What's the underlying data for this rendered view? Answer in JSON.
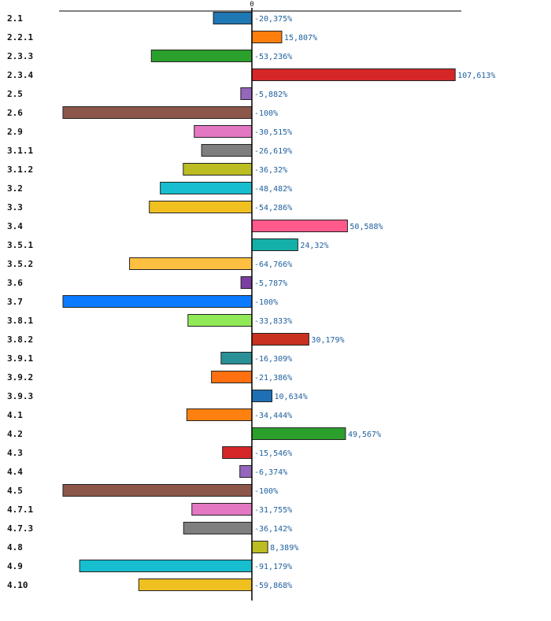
{
  "chart_data": {
    "type": "bar",
    "orientation": "horizontal",
    "title": "",
    "xlabel": "",
    "ylabel": "",
    "zero_tick_label": "0",
    "xlim": [
      -100,
      107.613
    ],
    "grid": false,
    "legend": "none",
    "categories": [
      "2.1",
      "2.2.1",
      "2.3.3",
      "2.3.4",
      "2.5",
      "2.6",
      "2.9",
      "3.1.1",
      "3.1.2",
      "3.2",
      "3.3",
      "3.4",
      "3.5.1",
      "3.5.2",
      "3.6",
      "3.7",
      "3.8.1",
      "3.8.2",
      "3.9.1",
      "3.9.2",
      "3.9.3",
      "4.1",
      "4.2",
      "4.3",
      "4.4",
      "4.5",
      "4.7.1",
      "4.7.3",
      "4.8",
      "4.9",
      "4.10"
    ],
    "values": [
      -20.375,
      15.807,
      -53.236,
      107.613,
      -5.882,
      -100,
      -30.515,
      -26.619,
      -36.32,
      -48.482,
      -54.286,
      50.588,
      24.32,
      -64.766,
      -5.787,
      -100,
      -33.833,
      30.179,
      -16.309,
      -21.386,
      10.634,
      -34.444,
      49.567,
      -15.546,
      -6.374,
      -100,
      -31.755,
      -36.142,
      8.389,
      -91.179,
      -59.868
    ],
    "value_labels": [
      "-20,375%",
      "15,807%",
      "-53,236%",
      "107,613%",
      "-5,882%",
      "-100%",
      "-30,515%",
      "-26,619%",
      "-36,32%",
      "-48,482%",
      "-54,286%",
      "50,588%",
      "24,32%",
      "-64,766%",
      "-5,787%",
      "-100%",
      "-33,833%",
      "30,179%",
      "-16,309%",
      "-21,386%",
      "10,634%",
      "-34,444%",
      "49,567%",
      "-15,546%",
      "-6,374%",
      "-100%",
      "-31,755%",
      "-36,142%",
      "8,389%",
      "-91,179%",
      "-59,868%"
    ],
    "colors": [
      "#1f77b4",
      "#ff7f0e",
      "#2ca02c",
      "#d62728",
      "#9467bd",
      "#8c564b",
      "#e377c2",
      "#7f7f7f",
      "#bcbd22",
      "#17becf",
      "#f0c020",
      "#ff5a8c",
      "#14b0a8",
      "#ffbf40",
      "#7a3fa0",
      "#0a7bff",
      "#90ea58",
      "#c83020",
      "#2a9098",
      "#ff7010",
      "#1f6fb4",
      "#ff800e",
      "#2ca02c",
      "#d62728",
      "#9467bd",
      "#8c564b",
      "#e377c2",
      "#7f7f7f",
      "#bcbd22",
      "#17becf",
      "#f0c020"
    ]
  }
}
